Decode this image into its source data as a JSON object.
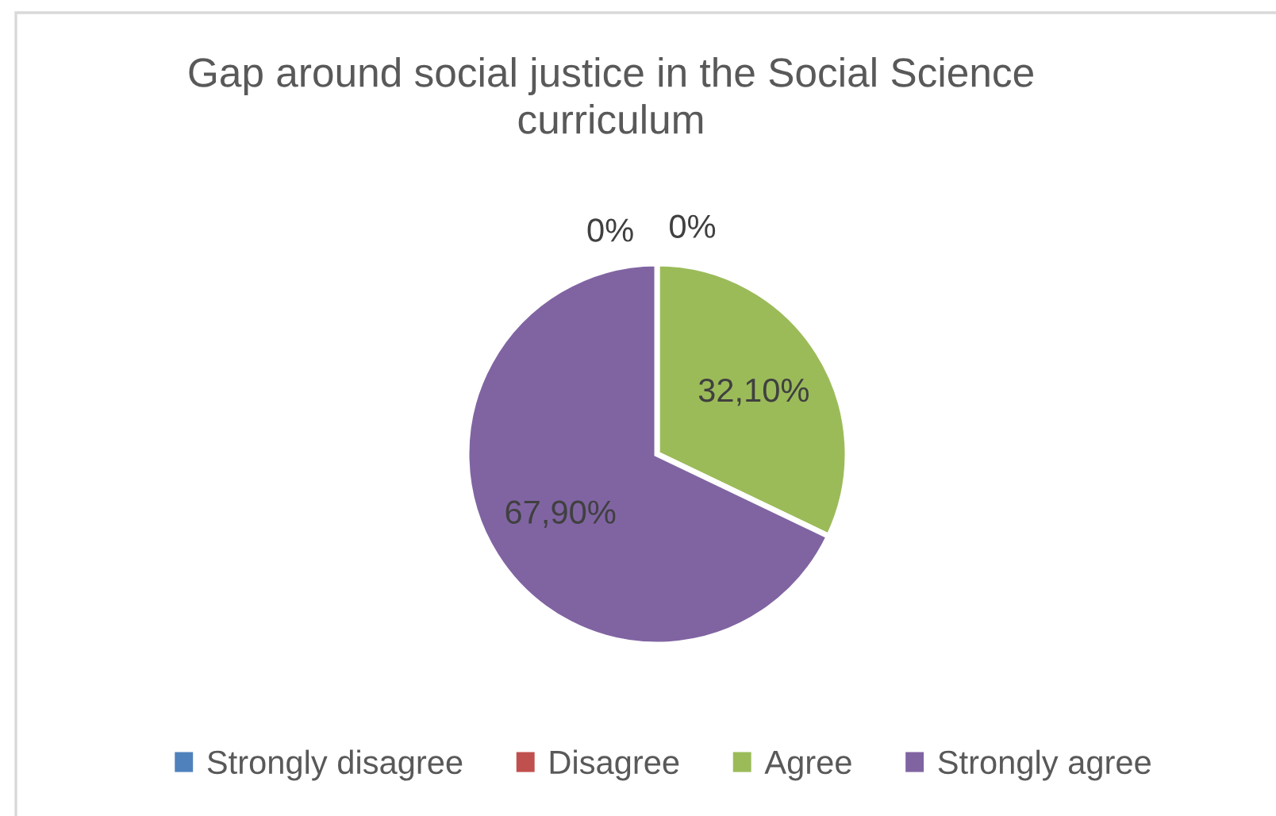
{
  "chart_data": {
    "type": "pie",
    "title": "Gap around social justice in the Social Science curriculum",
    "categories": [
      "Strongly disagree",
      "Disagree",
      "Agree",
      "Strongly agree"
    ],
    "values": [
      0,
      0,
      32.1,
      67.9
    ],
    "colors": [
      "#4f81bd",
      "#c0504d",
      "#9bbb59",
      "#8064a2"
    ],
    "value_labels": [
      "0%",
      "0%",
      "32,10%",
      "67,90%"
    ],
    "legend": "bottom"
  }
}
